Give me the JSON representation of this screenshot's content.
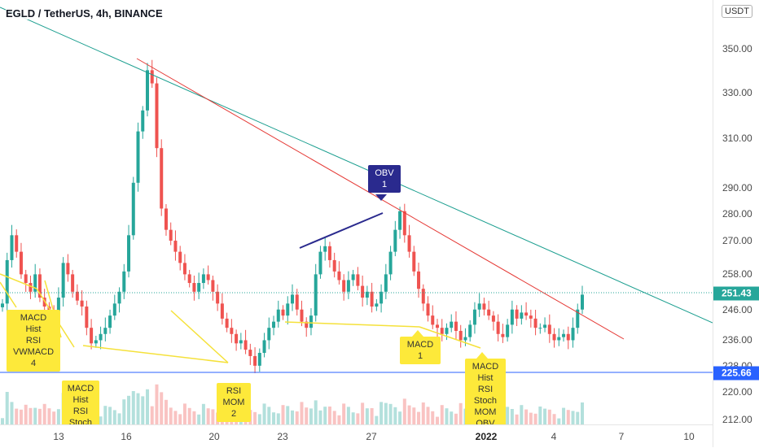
{
  "symbol": {
    "title": "EGLD / TetherUS, 4h, BINANCE"
  },
  "price_axis": {
    "currency": "USDT",
    "ticks": [
      "350.00",
      "330.00",
      "310.00",
      "290.00",
      "280.00",
      "270.00",
      "258.00",
      "246.00",
      "236.00",
      "228.00",
      "220.00",
      "212.00"
    ],
    "current_price": "251.43",
    "horizontal_line_price": "225.66"
  },
  "time_axis": {
    "ticks": [
      "13",
      "16",
      "20",
      "23",
      "27",
      "2022",
      "4",
      "7",
      "10"
    ]
  },
  "signals": [
    {
      "text": "MACD\nHist\nRSI\nVWMACD\n4",
      "kind": "yellow"
    },
    {
      "text": "MACD\nHist\nRSI\nStoch",
      "kind": "yellow"
    },
    {
      "text": "RSI\nMOM\n2",
      "kind": "yellow"
    },
    {
      "text": "OBV\n1",
      "kind": "obv"
    },
    {
      "text": "MACD\n1",
      "kind": "yellow"
    },
    {
      "text": "MACD\nHist\nRSI\nStoch\nMOM\nOBV",
      "kind": "yellow"
    }
  ],
  "colors": {
    "up": "#26a69a",
    "down": "#ef5350",
    "trend_teal": "#1a9e8f",
    "trend_red": "#e53935",
    "yellow_line": "#f5e13a",
    "obv_line": "#2a2a8e",
    "hline": "#2962ff",
    "price_label": "#26a69a"
  },
  "chart_data": {
    "type": "candlestick",
    "title": "EGLD / TetherUS, 4h, BINANCE",
    "y_scale": "log",
    "ylim": [
      211,
      372
    ],
    "x_labels": [
      "13",
      "16",
      "20",
      "23",
      "27",
      "2022",
      "4",
      "7",
      "10"
    ],
    "close_series": [
      248,
      263,
      272,
      266,
      258,
      255,
      252,
      258,
      250,
      247,
      245,
      243,
      250,
      262,
      258,
      252,
      249,
      247,
      240,
      235,
      236,
      238,
      240,
      244,
      248,
      252,
      259,
      272,
      292,
      313,
      322,
      340,
      334,
      306,
      282,
      274,
      270,
      266,
      262,
      258,
      255,
      252,
      255,
      258,
      256,
      252,
      248,
      243,
      240,
      238,
      235,
      236,
      233,
      231,
      228,
      232,
      236,
      240,
      242,
      246,
      244,
      248,
      251,
      246,
      242,
      240,
      244,
      258,
      266,
      268,
      263,
      259,
      256,
      252,
      256,
      258,
      254,
      250,
      252,
      247,
      248,
      252,
      258,
      266,
      274,
      281,
      272,
      266,
      259,
      253,
      248,
      244,
      241,
      240,
      238,
      240,
      242,
      239,
      236,
      237,
      241,
      246,
      248,
      246,
      244,
      242,
      238,
      237,
      241,
      246,
      243,
      245,
      244,
      243,
      240,
      240,
      241,
      238,
      236,
      237,
      238,
      236,
      240,
      246,
      251
    ],
    "horizontal_level": 225.66,
    "last_price": 251.43
  }
}
